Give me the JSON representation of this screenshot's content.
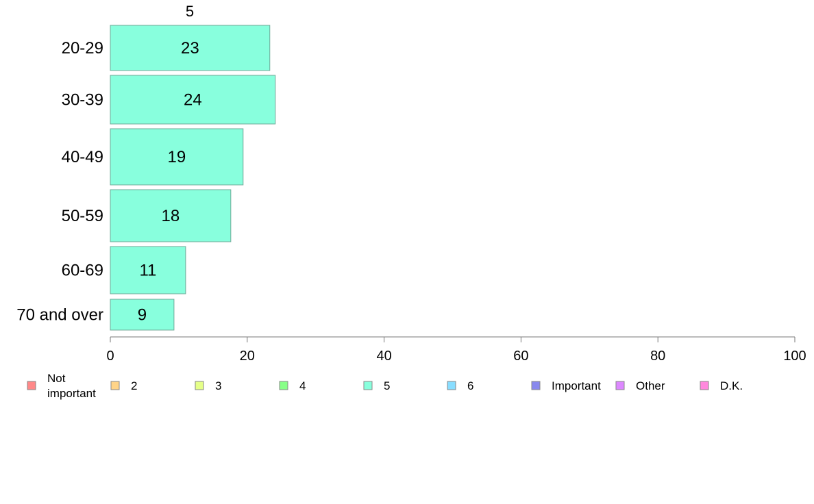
{
  "chart_data": {
    "type": "bar",
    "orientation": "horizontal",
    "series_title": "5",
    "categories": [
      "20-29",
      "30-39",
      "40-49",
      "50-59",
      "60-69",
      "70 and over"
    ],
    "series": [
      {
        "name": "5",
        "values": [
          23.3,
          24.1,
          19.4,
          17.6,
          11,
          9.3
        ],
        "labels": [
          "23",
          "24",
          "19",
          "18",
          "11",
          "9"
        ],
        "color": "#88FFDD"
      }
    ],
    "xlim": [
      0,
      100
    ],
    "xticks": [
      0,
      20,
      40,
      60,
      80,
      100
    ],
    "xlabel": "",
    "ylabel": "",
    "grid": false,
    "legend_position": "bottom",
    "legend": [
      {
        "label": "Not important",
        "color": "#FF8888"
      },
      {
        "label": "2",
        "color": "#FFD488"
      },
      {
        "label": "3",
        "color": "#E5FF88"
      },
      {
        "label": "4",
        "color": "#88FF88"
      },
      {
        "label": "5",
        "color": "#88FFDD"
      },
      {
        "label": "6",
        "color": "#88DDFF"
      },
      {
        "label": "Important",
        "color": "#8888EE"
      },
      {
        "label": "Other",
        "color": "#DD88FF"
      },
      {
        "label": "D.K.",
        "color": "#FF88DD"
      }
    ]
  }
}
